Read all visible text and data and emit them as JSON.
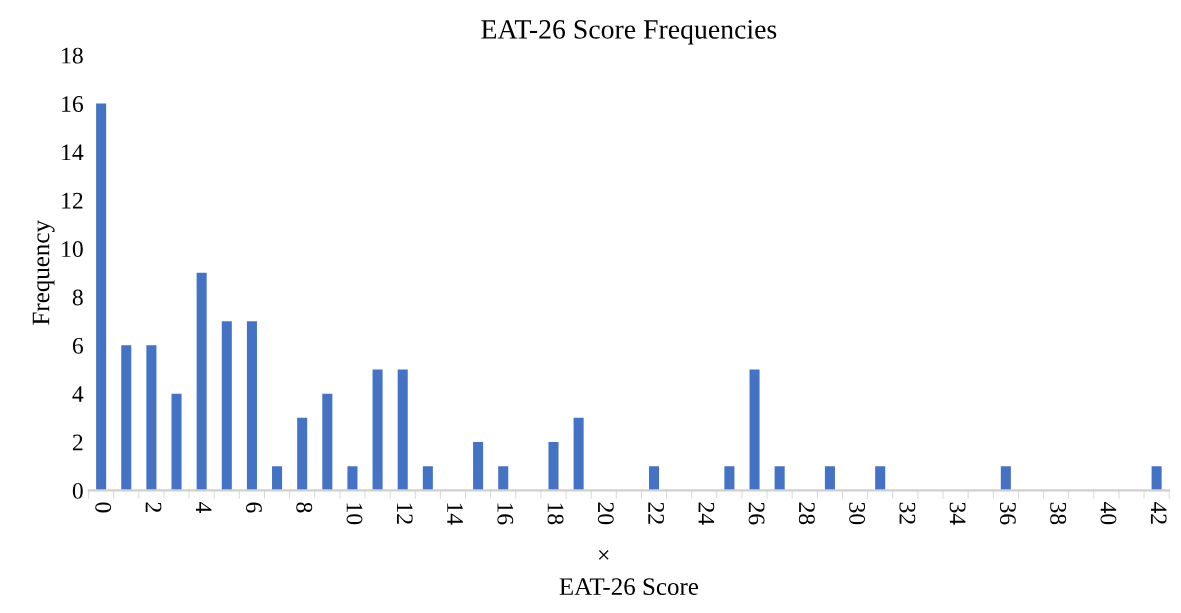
{
  "chart_data": {
    "type": "bar",
    "title": "EAT-26 Score Frequencies",
    "xlabel": "EAT-26 Score",
    "ylabel": "Frequency",
    "categories": [
      "0",
      null,
      "2",
      null,
      "4",
      null,
      "6",
      null,
      "8",
      null,
      "10",
      null,
      "12",
      null,
      "14",
      null,
      "16",
      null,
      "18",
      null,
      "20",
      null,
      "22",
      null,
      "24",
      null,
      "26",
      null,
      "28",
      null,
      "30",
      null,
      "32",
      null,
      "34",
      null,
      "36",
      null,
      "38",
      null,
      "40",
      null,
      "42"
    ],
    "values": [
      16,
      6,
      6,
      4,
      9,
      7,
      7,
      1,
      3,
      4,
      1,
      5,
      5,
      1,
      0,
      2,
      1,
      0,
      2,
      3,
      0,
      0,
      1,
      0,
      0,
      1,
      5,
      1,
      0,
      1,
      0,
      1,
      0,
      0,
      0,
      0,
      1,
      0,
      0,
      0,
      0,
      0,
      1
    ],
    "color": "#4472c4",
    "ylim": [
      0,
      18
    ],
    "yticks": [
      0,
      2,
      4,
      6,
      8,
      10,
      12,
      14,
      16,
      18
    ],
    "grid": false,
    "annotations": [
      "×"
    ]
  }
}
